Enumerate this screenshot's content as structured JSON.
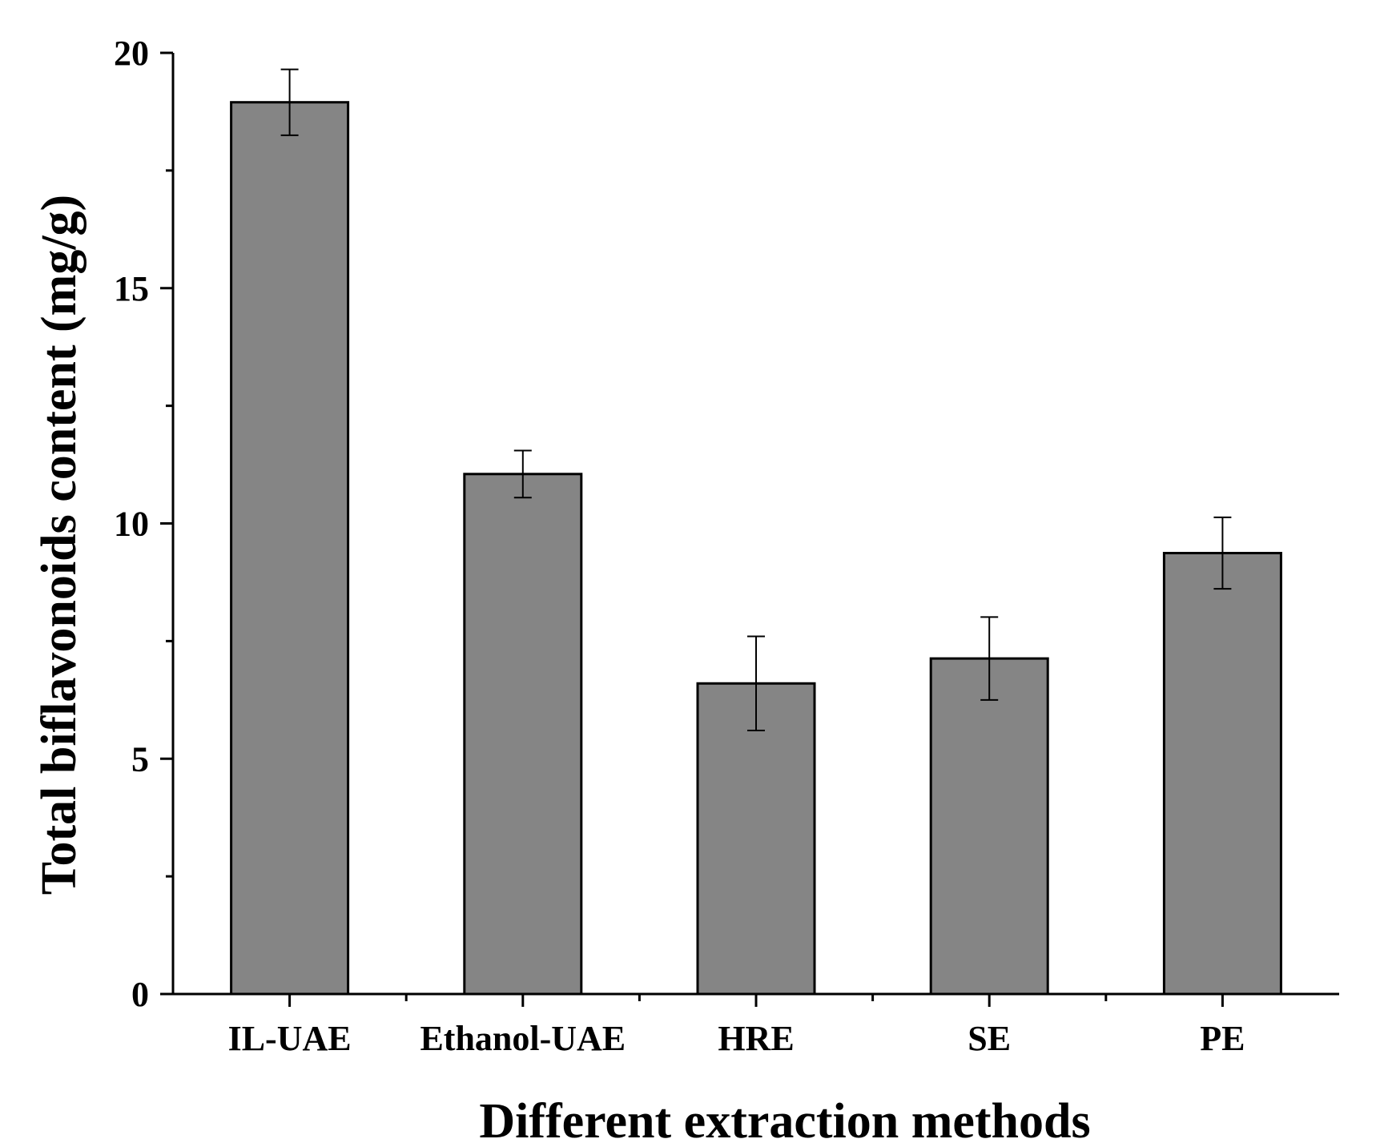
{
  "chart_data": {
    "type": "bar",
    "title": "",
    "xlabel": "Different extraction methods",
    "ylabel": "Total biflavonoids content (mg/g)",
    "categories": [
      "IL-UAE",
      "Ethanol-UAE",
      "HRE",
      "SE",
      "PE"
    ],
    "values": [
      18.95,
      11.05,
      6.6,
      7.13,
      9.37
    ],
    "errors": [
      0.7,
      0.5,
      1.0,
      0.88,
      0.76
    ],
    "ylim": [
      0,
      20
    ],
    "yticks": [
      0,
      5,
      10,
      15,
      20
    ],
    "ytick_labels": [
      "0",
      "5",
      "10",
      "15",
      "20"
    ],
    "bar_color": "#858585",
    "grid": false
  }
}
